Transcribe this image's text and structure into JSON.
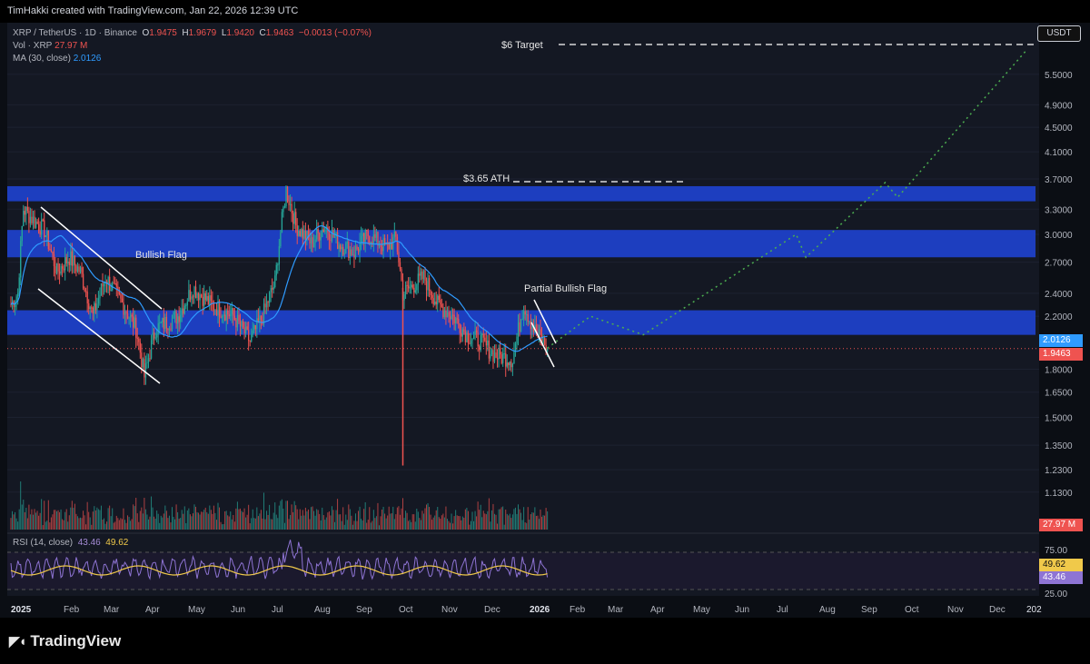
{
  "header": {
    "text": "TimHakki created with TradingView.com, Jan 22, 2026 12:39 UTC"
  },
  "legend": {
    "symbol": "XRP / TetherUS · 1D · Binance",
    "o_label": "O",
    "o": "1.9475",
    "h_label": "H",
    "h": "1.9679",
    "l_label": "L",
    "l": "1.9420",
    "c_label": "C",
    "c": "1.9463",
    "change": "−0.0013 (−0.07%)",
    "vol_label": "Vol · XRP",
    "vol": "27.97 M",
    "ma_label": "MA (30, close)",
    "ma": "2.0126"
  },
  "currency_button": "USDT",
  "price_axis": [
    "5.5000",
    "4.9000",
    "4.5000",
    "4.1000",
    "3.7000",
    "3.3000",
    "3.0000",
    "2.7000",
    "2.4000",
    "2.2000",
    "1.8000",
    "1.6500",
    "1.5000",
    "1.3500",
    "1.2300",
    "1.1300"
  ],
  "price_tags": {
    "ma": "2.0126",
    "close": "1.9463",
    "volume": "27.97 M",
    "rsi_ma": "49.62",
    "rsi": "43.46"
  },
  "rsi_axis": [
    "75.00",
    "25.00"
  ],
  "rsi_legend": {
    "label": "RSI (14, close)",
    "rsi": "43.46",
    "ma": "49.62"
  },
  "annotations": {
    "target": "$6 Target",
    "ath": "$3.65 ATH",
    "bullish_flag": "Bullish Flag",
    "partial_flag": "Partial Bullish Flag"
  },
  "time_axis": [
    "2025",
    "Feb",
    "Mar",
    "Apr",
    "May",
    "Jun",
    "Jul",
    "Aug",
    "Sep",
    "Oct",
    "Nov",
    "Dec",
    "2026",
    "Feb",
    "Mar",
    "Apr",
    "May",
    "Jun",
    "Jul",
    "Aug",
    "Sep",
    "Oct",
    "Nov",
    "Dec",
    "202"
  ],
  "brand": "TradingView",
  "colors": {
    "up": "#26a69a",
    "down": "#ef5350",
    "zone": "#1e40c8",
    "ma": "#2f9bff",
    "rsi": "#8e74d4",
    "rsi_ma": "#f0c94a",
    "projection": "#4caf50"
  },
  "chart_data": {
    "type": "candlestick",
    "title": "XRP / TetherUS · 1D · Binance",
    "y_scale": "log",
    "ylim": [
      1.05,
      6.3
    ],
    "close_path": [
      [
        "2025-01-01",
        2.3
      ],
      [
        "2025-01-06",
        2.4
      ],
      [
        "2025-01-10",
        3.3
      ],
      [
        "2025-01-18",
        3.15
      ],
      [
        "2025-01-25",
        3.05
      ],
      [
        "2025-02-03",
        2.6
      ],
      [
        "2025-02-12",
        2.75
      ],
      [
        "2025-02-20",
        2.6
      ],
      [
        "2025-03-01",
        2.2
      ],
      [
        "2025-03-10",
        2.55
      ],
      [
        "2025-03-20",
        2.35
      ],
      [
        "2025-04-01",
        2.1
      ],
      [
        "2025-04-07",
        1.75
      ],
      [
        "2025-04-15",
        2.1
      ],
      [
        "2025-05-01",
        2.2
      ],
      [
        "2025-05-12",
        2.45
      ],
      [
        "2025-05-25",
        2.3
      ],
      [
        "2025-06-10",
        2.2
      ],
      [
        "2025-06-22",
        2.0
      ],
      [
        "2025-07-01",
        2.2
      ],
      [
        "2025-07-10",
        2.5
      ],
      [
        "2025-07-18",
        3.55
      ],
      [
        "2025-07-25",
        3.1
      ],
      [
        "2025-08-05",
        2.9
      ],
      [
        "2025-08-15",
        3.1
      ],
      [
        "2025-08-25",
        2.9
      ],
      [
        "2025-09-05",
        2.8
      ],
      [
        "2025-09-15",
        3.0
      ],
      [
        "2025-09-28",
        2.85
      ],
      [
        "2025-10-05",
        2.95
      ],
      [
        "2025-10-10",
        2.4
      ],
      [
        "2025-10-15",
        2.45
      ],
      [
        "2025-10-25",
        2.55
      ],
      [
        "2025-11-04",
        2.3
      ],
      [
        "2025-11-15",
        2.2
      ],
      [
        "2025-11-25",
        2.05
      ],
      [
        "2025-12-05",
        2.0
      ],
      [
        "2025-12-15",
        1.9
      ],
      [
        "2025-12-28",
        1.87
      ],
      [
        "2026-01-05",
        2.3
      ],
      [
        "2026-01-12",
        2.1
      ],
      [
        "2026-01-22",
        1.9463
      ]
    ],
    "ma30": {
      "last": 2.0126
    },
    "rsi14": {
      "last": 43.46,
      "ma_last": 49.62,
      "levels": [
        75,
        25
      ]
    },
    "zones": [
      [
        3.4,
        3.6
      ],
      [
        2.75,
        3.05
      ],
      [
        2.05,
        2.25
      ]
    ],
    "projection": [
      [
        "2026-01-22",
        1.95
      ],
      [
        "2026-02-22",
        2.2
      ],
      [
        "2026-04-01",
        2.05
      ],
      [
        "2026-07-20",
        3.0
      ],
      [
        "2026-07-27",
        2.75
      ],
      [
        "2026-09-22",
        3.65
      ],
      [
        "2026-10-01",
        3.45
      ],
      [
        "2027-01-01",
        6.0
      ]
    ],
    "levels": {
      "ath": 3.65,
      "target": 6.0
    }
  }
}
